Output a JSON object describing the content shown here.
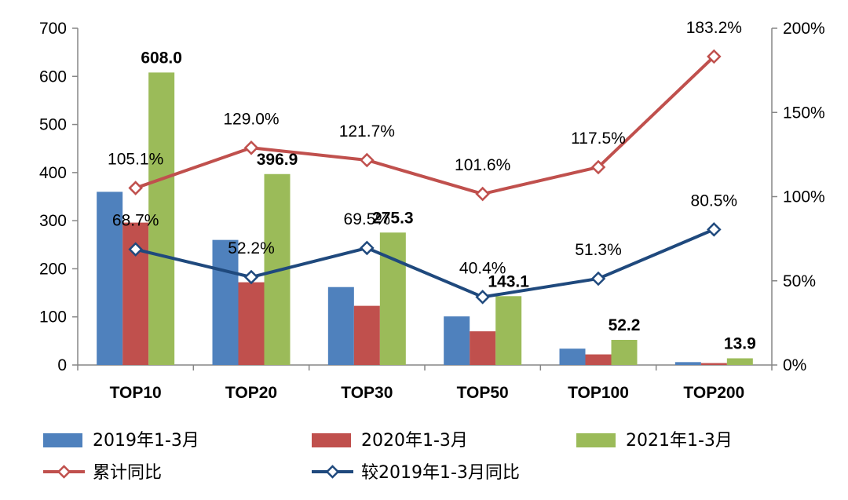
{
  "chart_data": {
    "type": "bar",
    "categories": [
      "TOP10",
      "TOP20",
      "TOP30",
      "TOP50",
      "TOP100",
      "TOP200"
    ],
    "y_left": {
      "ylim": [
        0,
        700
      ],
      "ticks": [
        "0",
        "100",
        "200",
        "300",
        "400",
        "500",
        "600",
        "700"
      ]
    },
    "y_right": {
      "ylim": [
        0,
        2
      ],
      "ticks": [
        "0%",
        "50%",
        "100%",
        "150%",
        "200%"
      ]
    },
    "bar_series": [
      {
        "name": "2019年1-3月",
        "color": "#4F81BD",
        "values": [
          360,
          260,
          162,
          101,
          34,
          6
        ]
      },
      {
        "name": "2020年1-3月",
        "color": "#C0504D",
        "values": [
          296,
          172,
          123,
          70,
          22,
          4
        ]
      },
      {
        "name": "2021年1-3月",
        "color": "#9BBB59",
        "values": [
          608.0,
          396.9,
          275.3,
          143.1,
          52.2,
          13.9
        ],
        "labels": [
          "608.0",
          "396.9",
          "275.3",
          "143.1",
          "52.2",
          "13.9"
        ]
      }
    ],
    "line_series": [
      {
        "name": "累计同比",
        "color": "#C0504D",
        "axis": "right",
        "values": [
          1.051,
          1.29,
          1.217,
          1.016,
          1.175,
          1.832
        ],
        "labels": [
          "105.1%",
          "129.0%",
          "121.7%",
          "101.6%",
          "117.5%",
          "183.2%"
        ]
      },
      {
        "name": "较2019年1-3月同比",
        "color": "#1F497D",
        "axis": "right",
        "values": [
          0.687,
          0.522,
          0.695,
          0.404,
          0.513,
          0.805
        ],
        "labels": [
          "68.7%",
          "52.2%",
          "69.5%",
          "40.4%",
          "51.3%",
          "80.5%"
        ]
      }
    ],
    "legend_position": "bottom",
    "grid": false
  }
}
